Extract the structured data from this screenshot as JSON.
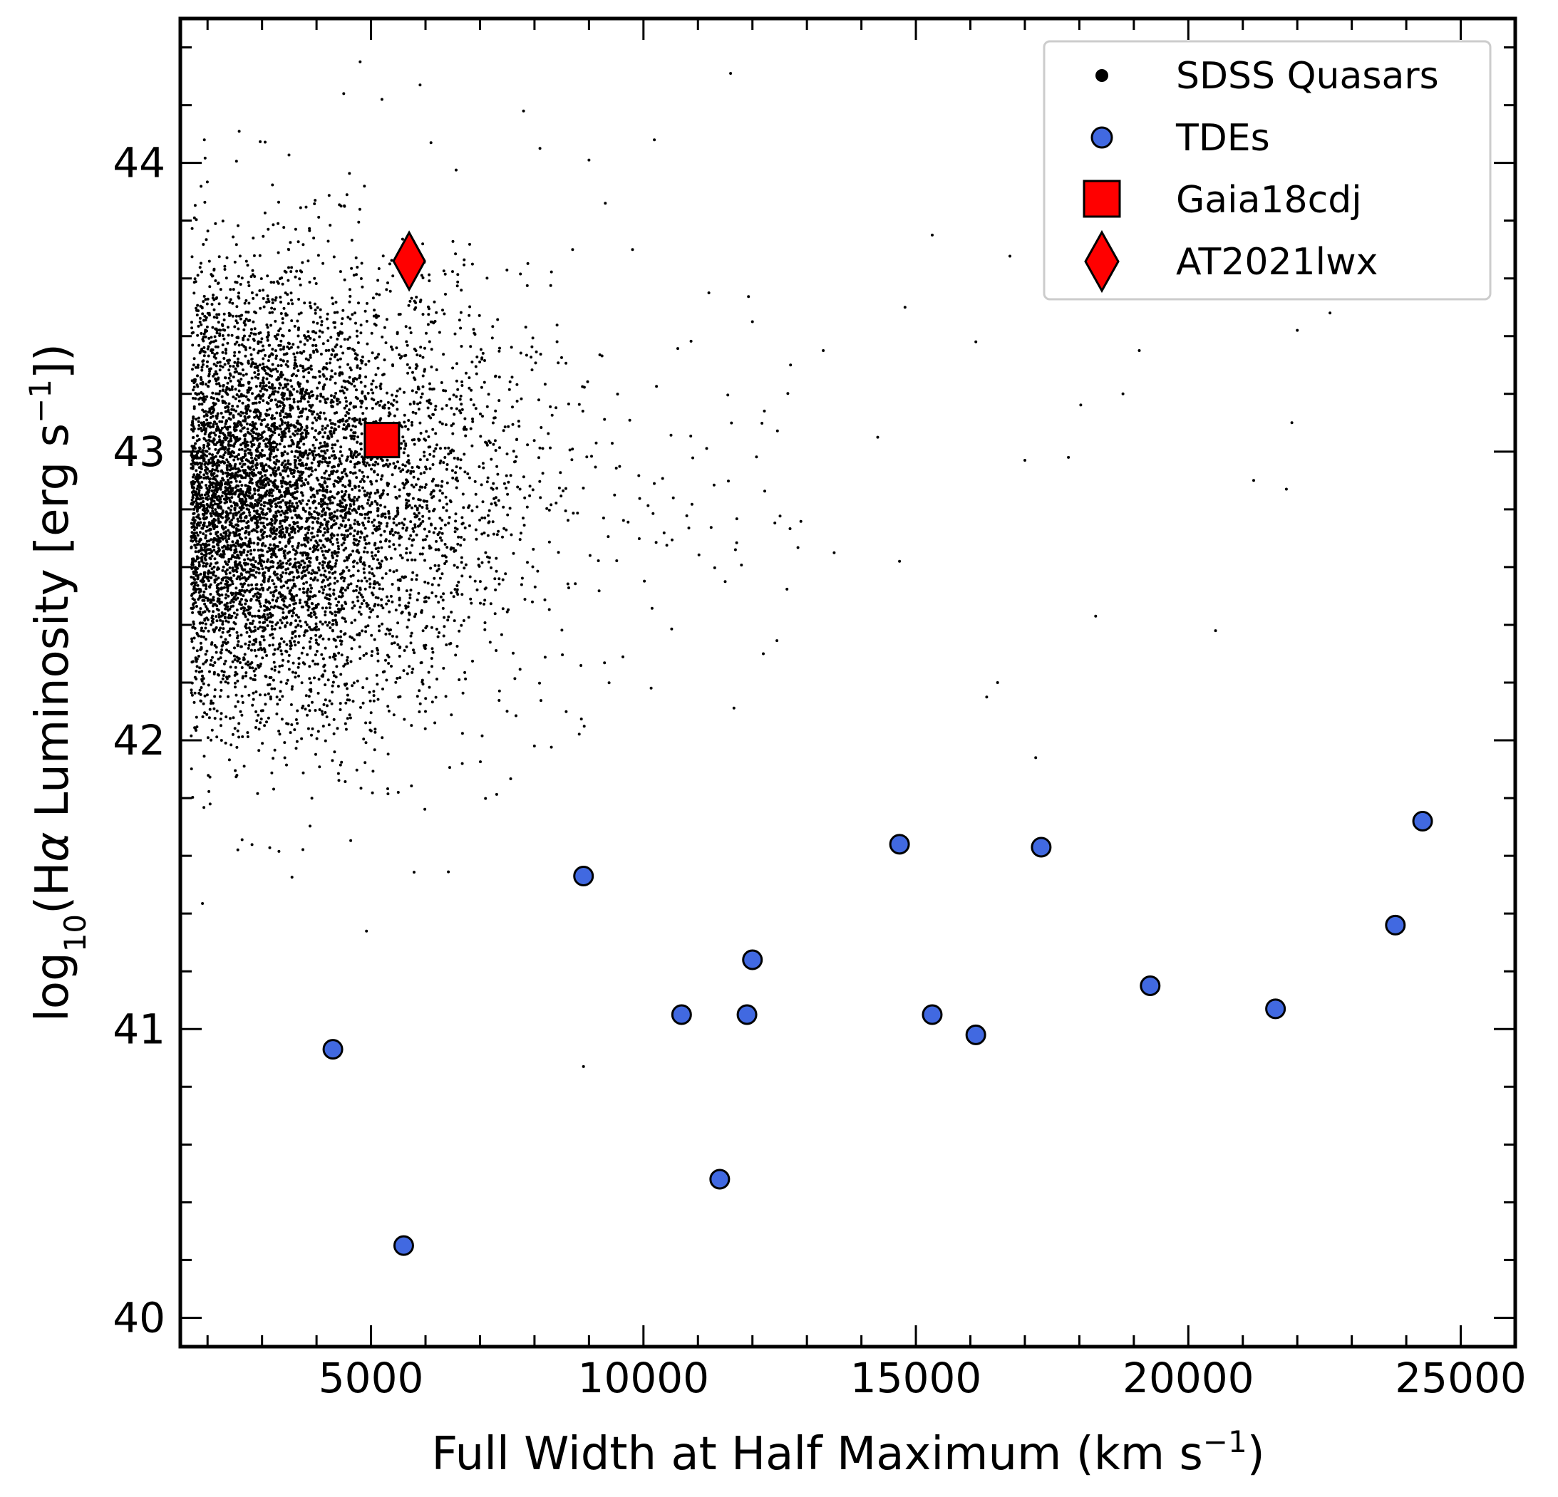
{
  "chart_data": {
    "type": "scatter",
    "xlabel": "Full Width at Half Maximum (km s$^{-1}$)",
    "xlabel_parts": {
      "base": "Full Width at Half Maximum (km s",
      "sup": "−1",
      "tail": ")"
    },
    "ylabel": "log$_{10}$(H$\\alpha$ Luminosity [erg s$^{-1}$])",
    "ylabel_parts": {
      "pre": "log",
      "sub": "10",
      "mid": "(H",
      "greek": "α",
      "post": " Luminosity [erg s",
      "sup": "−1",
      "tail": "])"
    },
    "xlim": [
      1500,
      26000
    ],
    "ylim": [
      39.9,
      44.5
    ],
    "x_ticks": [
      5000,
      10000,
      15000,
      20000,
      25000
    ],
    "x_tick_labels": [
      "5000",
      "10000",
      "15000",
      "20000",
      "25000"
    ],
    "y_ticks": [
      40,
      41,
      42,
      43,
      44
    ],
    "y_tick_labels": [
      "40",
      "41",
      "42",
      "43",
      "44"
    ],
    "grid": false,
    "legend_position": "top-right",
    "series": [
      {
        "name": "SDSS Quasars",
        "marker": "dot",
        "color": "#000000",
        "count": 6500,
        "distribution": {
          "x_mode": 2500,
          "x_scale": 2400,
          "y_mean": 42.85,
          "y_sd": 0.38
        },
        "x_sample": [
          4800,
          5900,
          6100,
          5200,
          4500,
          7800,
          8100,
          9000,
          10200,
          11600,
          8700,
          9300,
          9800,
          11200,
          12000,
          12700,
          13300,
          14300,
          14800,
          15300,
          16100,
          17800,
          17000,
          18300,
          18800,
          19100,
          20500,
          21800,
          22000,
          22600,
          11500,
          12200,
          13500,
          16300,
          17200,
          21200,
          21900,
          6000,
          8900,
          14700,
          16500,
          5500
        ],
        "y_sample": [
          44.35,
          44.27,
          44.07,
          44.22,
          44.24,
          44.18,
          44.05,
          44.01,
          44.08,
          44.31,
          43.7,
          43.86,
          43.7,
          43.55,
          43.45,
          43.3,
          43.35,
          43.05,
          43.5,
          43.75,
          43.38,
          42.98,
          42.97,
          42.43,
          43.2,
          43.35,
          42.38,
          42.87,
          43.42,
          43.48,
          42.55,
          42.3,
          42.65,
          42.15,
          41.94,
          42.9,
          43.1,
          42.1,
          40.87,
          42.62,
          42.2,
          41.82
        ]
      },
      {
        "name": "TDEs",
        "marker": "circle",
        "color": "#4169e1",
        "x": [
          4300,
          5600,
          8900,
          10700,
          11400,
          11900,
          12000,
          14700,
          15300,
          16100,
          17300,
          19300,
          21600,
          23800,
          24300
        ],
        "y": [
          40.93,
          40.25,
          41.53,
          41.05,
          40.48,
          41.05,
          41.24,
          41.64,
          41.05,
          40.98,
          41.63,
          41.15,
          41.07,
          41.36,
          41.72
        ]
      },
      {
        "name": "Gaia18cdj",
        "marker": "square",
        "color": "#ff0000",
        "x": [
          5200
        ],
        "y": [
          43.04
        ]
      },
      {
        "name": "AT2021lwx",
        "marker": "diamond",
        "color": "#ff0000",
        "x": [
          5700
        ],
        "y": [
          43.66
        ]
      }
    ]
  }
}
